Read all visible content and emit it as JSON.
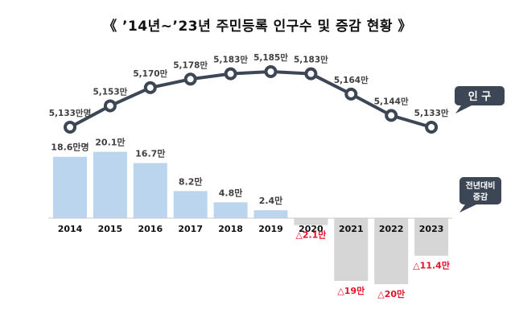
{
  "chart_data": {
    "type": "line+bar",
    "title": "《 ’14년~’23년 주민등록 인구수 및 증감 현황 》",
    "categories": [
      "2014",
      "2015",
      "2016",
      "2017",
      "2018",
      "2019",
      "2020",
      "2021",
      "2022",
      "2023"
    ],
    "population": {
      "name": "인 구",
      "unit": "만",
      "values": [
        5133,
        5153,
        5170,
        5178,
        5183,
        5185,
        5183,
        5164,
        5144,
        5133
      ],
      "labels": [
        "5,133만명",
        "5,153만",
        "5,170만",
        "5,178만",
        "5,183만",
        "5,185만",
        "5,183만",
        "5,164만",
        "5,144만",
        "5,133만"
      ]
    },
    "change": {
      "name": "전년대비 증감",
      "unit": "만",
      "values": [
        18.6,
        20.1,
        16.7,
        8.2,
        4.8,
        2.4,
        -2.1,
        -19,
        -20,
        -11.4
      ],
      "labels": [
        "18.6만명",
        "20.1만",
        "16.7만",
        "8.2만",
        "4.8만",
        "2.4만",
        "△2.1만",
        "△19만",
        "△20만",
        "△11.4만"
      ]
    },
    "legend_population": "인 구",
    "legend_change": [
      "전년대비",
      "증감"
    ],
    "colors": {
      "line": "#3c4654",
      "bar_positive": "#bcd5ee",
      "bar_negative": "#d6d6d6",
      "negative_label": "#e8102a",
      "label": "#404040",
      "axis": "#c8c8c8",
      "legend_bg": "#3c4654"
    }
  }
}
